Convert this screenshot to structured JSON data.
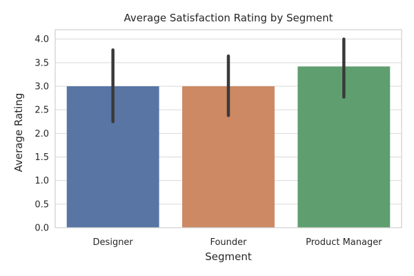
{
  "chart_data": {
    "type": "bar",
    "title": "Average Satisfaction Rating by Segment",
    "xlabel": "Segment",
    "ylabel": "Average Rating",
    "categories": [
      "Designer",
      "Founder",
      "Product Manager"
    ],
    "values": [
      3.0,
      3.0,
      3.42
    ],
    "error_low": [
      2.25,
      2.38,
      2.77
    ],
    "error_high": [
      3.77,
      3.64,
      4.0
    ],
    "colors": [
      "#5875a4",
      "#cc8963",
      "#5f9e6e"
    ],
    "ylim": [
      0,
      4.2
    ],
    "yticks": [
      "0.0",
      "0.5",
      "1.0",
      "1.5",
      "2.0",
      "2.5",
      "3.0",
      "3.5",
      "4.0"
    ],
    "grid": true,
    "legend": "none"
  }
}
